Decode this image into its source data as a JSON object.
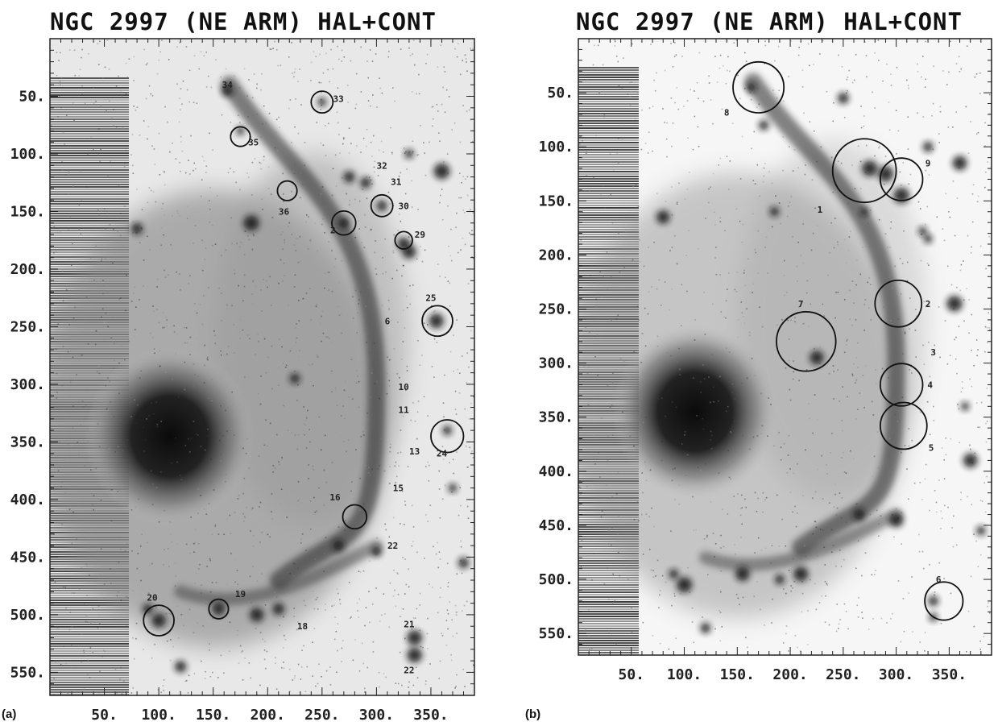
{
  "panels": [
    {
      "id": "a",
      "title": "NGC 2997 (NE ARM) HAL+CONT",
      "panel_label": "(a)",
      "x_ticks": [
        "50.",
        "100.",
        "150.",
        "200.",
        "250.",
        "300.",
        "350."
      ],
      "y_ticks": [
        "50.",
        "100.",
        "150.",
        "200.",
        "250.",
        "300.",
        "350.",
        "400.",
        "450.",
        "500.",
        "550."
      ],
      "x_tick_values": [
        50,
        100,
        150,
        200,
        250,
        300,
        350
      ],
      "y_tick_values": [
        50,
        100,
        150,
        200,
        250,
        300,
        350,
        400,
        450,
        500,
        550
      ],
      "sources": [
        {
          "label": "34",
          "x": 163,
          "y": 40,
          "r": 0,
          "lx": 163,
          "ly": 40
        },
        {
          "label": "33",
          "x": 250,
          "y": 55,
          "r": 10,
          "lx": 265,
          "ly": 52
        },
        {
          "label": "35",
          "x": 175,
          "y": 85,
          "r": 9,
          "lx": 187,
          "ly": 90
        },
        {
          "label": "32",
          "x": 275,
          "y": 112,
          "r": 0,
          "lx": 305,
          "ly": 110
        },
        {
          "label": "31",
          "x": 290,
          "y": 120,
          "r": 0,
          "lx": 318,
          "ly": 124
        },
        {
          "label": "36",
          "x": 218,
          "y": 132,
          "r": 9,
          "lx": 215,
          "ly": 150
        },
        {
          "label": "30",
          "x": 305,
          "y": 145,
          "r": 10,
          "lx": 325,
          "ly": 145
        },
        {
          "label": "2",
          "x": 270,
          "y": 160,
          "r": 11,
          "lx": 260,
          "ly": 166
        },
        {
          "label": "29",
          "x": 325,
          "y": 175,
          "r": 8,
          "lx": 340,
          "ly": 170
        },
        {
          "label": "25",
          "x": 356,
          "y": 245,
          "r": 14,
          "lx": 350,
          "ly": 225
        },
        {
          "label": "6",
          "x": 283,
          "y": 245,
          "r": 0,
          "lx": 310,
          "ly": 245
        },
        {
          "label": "10",
          "x": 305,
          "y": 302,
          "r": 0,
          "lx": 325,
          "ly": 302
        },
        {
          "label": "11",
          "x": 305,
          "y": 322,
          "r": 0,
          "lx": 325,
          "ly": 322
        },
        {
          "label": "13",
          "x": 320,
          "y": 340,
          "r": 0,
          "lx": 335,
          "ly": 358
        },
        {
          "label": "24",
          "x": 365,
          "y": 345,
          "r": 15,
          "lx": 360,
          "ly": 360
        },
        {
          "label": "15",
          "x": 305,
          "y": 375,
          "r": 0,
          "lx": 320,
          "ly": 390
        },
        {
          "label": "16",
          "x": 280,
          "y": 415,
          "r": 11,
          "lx": 262,
          "ly": 398
        },
        {
          "label": "22",
          "x": 300,
          "y": 445,
          "r": 0,
          "lx": 315,
          "ly": 440
        },
        {
          "label": "20",
          "x": 100,
          "y": 505,
          "r": 14,
          "lx": 94,
          "ly": 485
        },
        {
          "label": "19",
          "x": 155,
          "y": 495,
          "r": 9,
          "lx": 175,
          "ly": 482
        },
        {
          "label": "18",
          "x": 215,
          "y": 502,
          "r": 0,
          "lx": 232,
          "ly": 510
        },
        {
          "label": "21",
          "x": 335,
          "y": 518,
          "r": 0,
          "lx": 330,
          "ly": 508
        },
        {
          "label": "22",
          "x": 335,
          "y": 538,
          "r": 0,
          "lx": 330,
          "ly": 548
        }
      ]
    },
    {
      "id": "b",
      "title": "NGC 2997 (NE ARM) HAL+CONT",
      "panel_label": "(b)",
      "x_ticks": [
        "50.",
        "100.",
        "150.",
        "200.",
        "250.",
        "300.",
        "350."
      ],
      "y_ticks": [
        "50.",
        "100.",
        "150.",
        "200.",
        "250.",
        "300.",
        "350.",
        "400.",
        "450.",
        "500.",
        "550."
      ],
      "x_tick_values": [
        50,
        100,
        150,
        200,
        250,
        300,
        350
      ],
      "y_tick_values": [
        50,
        100,
        150,
        200,
        250,
        300,
        350,
        400,
        450,
        500,
        550
      ],
      "sources": [
        {
          "label": "8",
          "x": 170,
          "y": 45,
          "r": 24,
          "lx": 140,
          "ly": 68
        },
        {
          "label": "9",
          "x": 305,
          "y": 130,
          "r": 20,
          "lx": 330,
          "ly": 115
        },
        {
          "label": "1",
          "x": 270,
          "y": 122,
          "r": 30,
          "lx": 228,
          "ly": 158
        },
        {
          "label": "7",
          "x": 215,
          "y": 280,
          "r": 28,
          "lx": 210,
          "ly": 245
        },
        {
          "label": "2",
          "x": 302,
          "y": 245,
          "r": 22,
          "lx": 330,
          "ly": 245
        },
        {
          "label": "3",
          "x": 305,
          "y": 290,
          "r": 0,
          "lx": 335,
          "ly": 290
        },
        {
          "label": "4",
          "x": 305,
          "y": 320,
          "r": 20,
          "lx": 332,
          "ly": 320
        },
        {
          "label": "5",
          "x": 307,
          "y": 358,
          "r": 22,
          "lx": 333,
          "ly": 378
        },
        {
          "label": "6",
          "x": 345,
          "y": 520,
          "r": 18,
          "lx": 340,
          "ly": 500
        }
      ]
    }
  ]
}
